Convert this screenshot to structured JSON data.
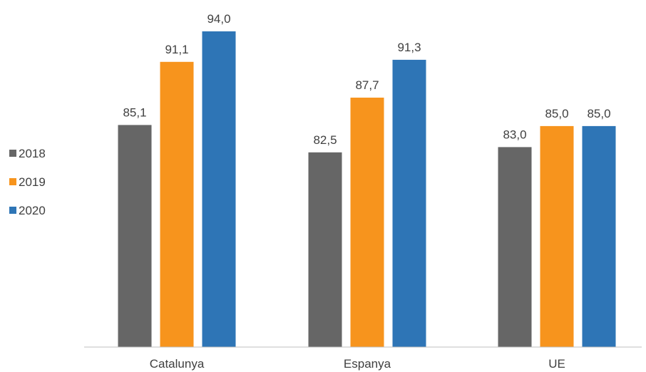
{
  "chart_data": {
    "type": "bar",
    "categories": [
      "Catalunya",
      "Espanya",
      "UE"
    ],
    "series": [
      {
        "name": "2018",
        "values": [
          85.1,
          82.5,
          83.0
        ],
        "labels": [
          "85,1",
          "82,5",
          "83,0"
        ],
        "color": "#666666"
      },
      {
        "name": "2019",
        "values": [
          91.1,
          87.7,
          85.0
        ],
        "labels": [
          "91,1",
          "87,7",
          "85,0"
        ],
        "color": "#F7941D"
      },
      {
        "name": "2020",
        "values": [
          94.0,
          91.3,
          85.0
        ],
        "labels": [
          "94,0",
          "91,3",
          "85,0"
        ],
        "color": "#2E75B6"
      }
    ],
    "title": "",
    "xlabel": "",
    "ylabel": "",
    "ylim": [
      64,
      94
    ],
    "grid": false,
    "legend": "left"
  }
}
